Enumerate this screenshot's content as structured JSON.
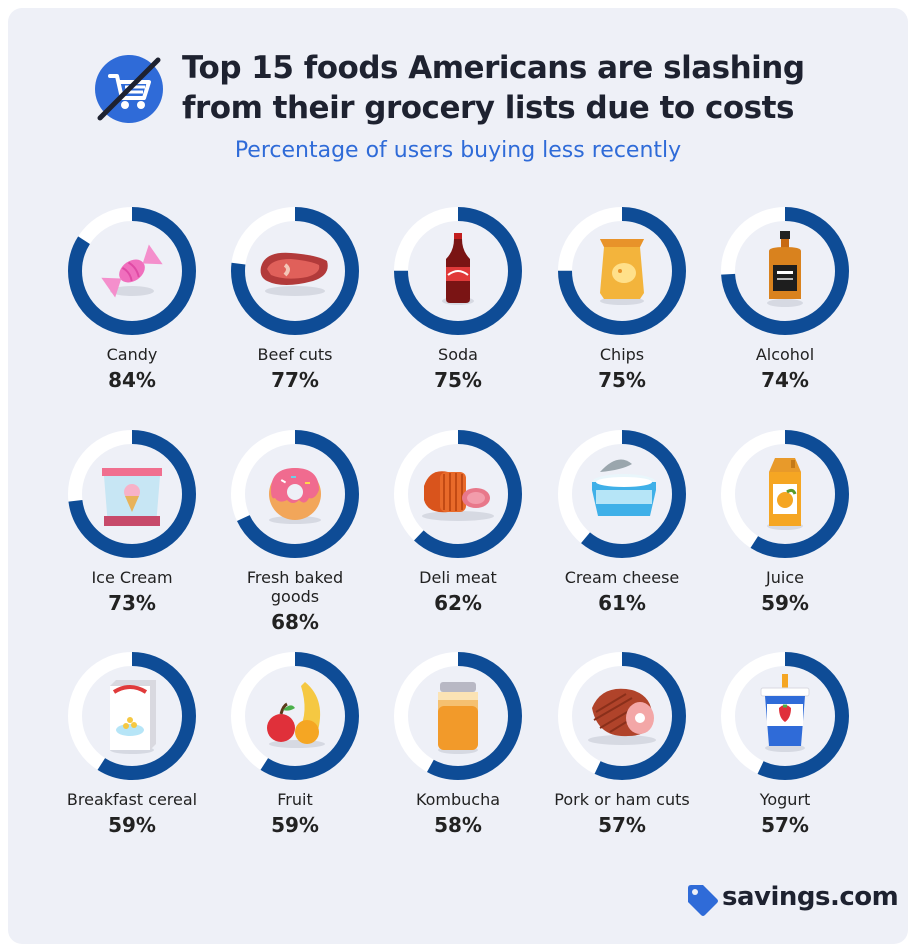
{
  "header": {
    "title_line1": "Top 15 foods Americans are slashing",
    "title_line2": "from their grocery lists due to costs",
    "subtitle": "Percentage of users buying less recently",
    "badge_icon": "crossed-out-cart-icon"
  },
  "brand": {
    "name": "savings.com",
    "icon": "price-tag-icon"
  },
  "colors": {
    "ring": "#0e4c96",
    "ring_track": "#ffffff",
    "title": "#1e2230",
    "subtitle": "#2f6bd8",
    "badge": "#2f6bd8"
  },
  "chart_data": {
    "type": "donut-grid",
    "title": "Top 15 foods Americans are slashing from their grocery lists due to costs",
    "subtitle": "Percentage of users buying less recently",
    "unit": "%",
    "items": [
      {
        "label": "Candy",
        "value": 84,
        "value_label": "84%",
        "icon": "candy-icon"
      },
      {
        "label": "Beef cuts",
        "value": 77,
        "value_label": "77%",
        "icon": "steak-icon"
      },
      {
        "label": "Soda",
        "value": 75,
        "value_label": "75%",
        "icon": "soda-bottle-icon"
      },
      {
        "label": "Chips",
        "value": 75,
        "value_label": "75%",
        "icon": "chips-bag-icon"
      },
      {
        "label": "Alcohol",
        "value": 74,
        "value_label": "74%",
        "icon": "whiskey-bottle-icon"
      },
      {
        "label": "Ice Cream",
        "value": 73,
        "value_label": "73%",
        "icon": "ice-cream-tub-icon"
      },
      {
        "label": "Fresh baked goods",
        "value": 68,
        "value_label": "68%",
        "icon": "donut-icon"
      },
      {
        "label": "Deli meat",
        "value": 62,
        "value_label": "62%",
        "icon": "deli-meat-icon"
      },
      {
        "label": "Cream cheese",
        "value": 61,
        "value_label": "61%",
        "icon": "cream-cheese-tub-icon"
      },
      {
        "label": "Juice",
        "value": 59,
        "value_label": "59%",
        "icon": "juice-carton-icon"
      },
      {
        "label": "Breakfast cereal",
        "value": 59,
        "value_label": "59%",
        "icon": "cereal-box-icon"
      },
      {
        "label": "Fruit",
        "value": 59,
        "value_label": "59%",
        "icon": "fruit-icon"
      },
      {
        "label": "Kombucha",
        "value": 58,
        "value_label": "58%",
        "icon": "kombucha-jar-icon"
      },
      {
        "label": "Pork or ham cuts",
        "value": 57,
        "value_label": "57%",
        "icon": "ham-icon"
      },
      {
        "label": "Yogurt",
        "value": 57,
        "value_label": "57%",
        "icon": "yogurt-cup-icon"
      }
    ]
  }
}
